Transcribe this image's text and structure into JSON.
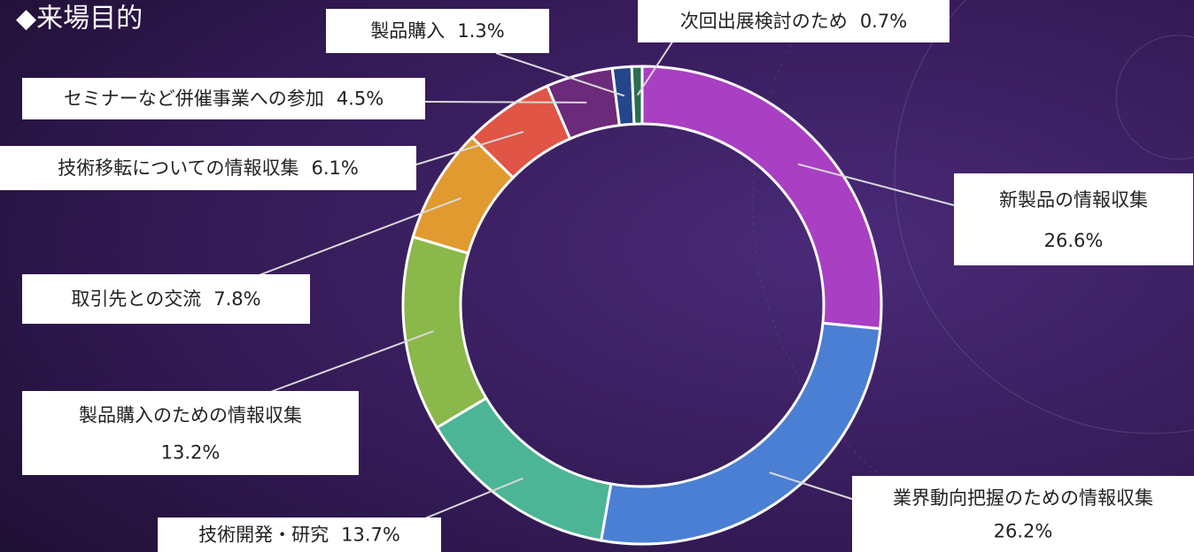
{
  "chart_data": {
    "type": "donut",
    "title": "◆来場目的",
    "categories": [
      "新製品の情報収集",
      "業界動向把握のための情報収集",
      "技術開発・研究",
      "製品購入のための情報収集",
      "取引先との交流",
      "技術移転についての情報収集",
      "セミナーなど併催事業への参加",
      "製品購入",
      "次回出展検討のため"
    ],
    "values": [
      26.6,
      26.2,
      13.7,
      13.2,
      7.8,
      6.1,
      4.5,
      1.3,
      0.7
    ],
    "value_labels": [
      "26.6%",
      "26.2%",
      "13.7%",
      "13.2%",
      "7.8%",
      "6.1%",
      "4.5%",
      "1.3%",
      "0.7%"
    ],
    "colors": [
      "#a93fc2",
      "#4a7fd4",
      "#4bb596",
      "#8ab84a",
      "#e09a30",
      "#e05545",
      "#6b2a7a",
      "#23468c",
      "#2a6e50"
    ]
  }
}
